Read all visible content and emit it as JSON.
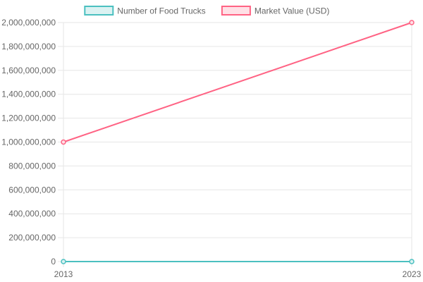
{
  "chart_data": {
    "type": "line",
    "x": [
      "2013",
      "2023"
    ],
    "series": [
      {
        "name": "Number of Food Trucks",
        "values": [
          4000,
          35000
        ],
        "color": "#4bc0c0",
        "fill": "#dbf2f2"
      },
      {
        "name": "Market Value (USD)",
        "values": [
          1000000000,
          2000000000
        ],
        "color": "#ff6384",
        "fill": "#ffe0e6"
      }
    ],
    "ylim": [
      0,
      2000000000
    ],
    "yticks": [
      "0",
      "200,000,000",
      "400,000,000",
      "600,000,000",
      "800,000,000",
      "1,000,000,000",
      "1,200,000,000",
      "1,400,000,000",
      "1,600,000,000",
      "1,800,000,000",
      "2,000,000,000"
    ],
    "grid": true,
    "legend": "top"
  }
}
